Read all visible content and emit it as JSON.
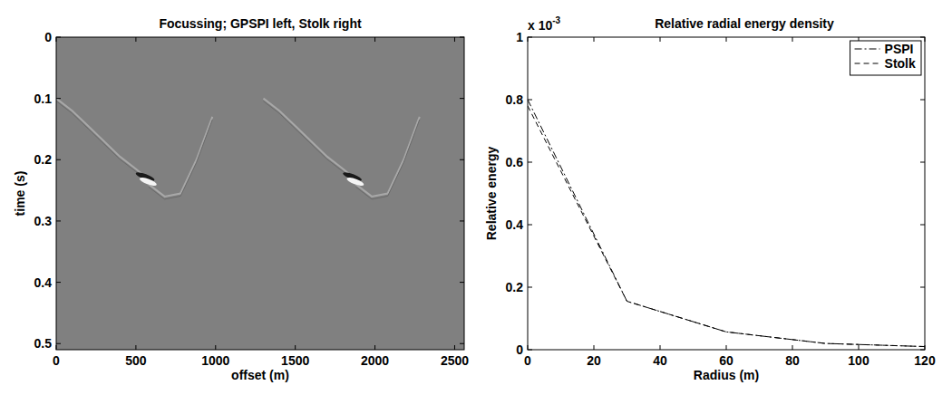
{
  "chart_data": [
    {
      "type": "image",
      "title": "Focussing; GPSPI left, Stolk right",
      "x_label": "offset (m)",
      "y_label": "time (s)",
      "color": "#808080",
      "xlim": [
        0,
        2560
      ],
      "ylim": [
        0,
        0.51
      ],
      "xticks": [
        0,
        500,
        1000,
        1500,
        2000,
        2500
      ],
      "yticks": [
        0,
        0.1,
        0.2,
        0.3,
        0.4,
        0.5
      ],
      "events": [
        {
          "x": [
            0,
            100,
            200,
            300,
            400,
            500,
            560
          ],
          "y": [
            0.1,
            0.12,
            0.145,
            0.17,
            0.195,
            0.215,
            0.228
          ]
        },
        {
          "x": [
            580,
            680,
            780,
            880,
            980
          ],
          "y": [
            0.24,
            0.26,
            0.255,
            0.2,
            0.13
          ]
        },
        {
          "x": [
            1300,
            1400,
            1500,
            1600,
            1700,
            1800,
            1860
          ],
          "y": [
            0.1,
            0.12,
            0.145,
            0.17,
            0.195,
            0.215,
            0.228
          ]
        },
        {
          "x": [
            1880,
            1980,
            2080,
            2180,
            2280
          ],
          "y": [
            0.24,
            0.26,
            0.255,
            0.2,
            0.13
          ]
        }
      ],
      "foci": {
        "x": [
          570,
          1870
        ],
        "y": [
          0.232,
          0.232
        ]
      }
    },
    {
      "type": "line",
      "title": "Relative radial energy density",
      "x_label": "Radius (m)",
      "y_label": "Relative energy",
      "annotation": "x 10",
      "annotation_exponent": "-3",
      "xlim": [
        0,
        120
      ],
      "ylim": [
        0,
        1
      ],
      "xticks": [
        0,
        20,
        40,
        60,
        80,
        100,
        120
      ],
      "yticks": [
        0,
        0.2,
        0.4,
        0.6,
        0.8,
        1
      ],
      "legend": "top-right",
      "x": [
        0,
        30,
        60,
        90,
        120
      ],
      "series": [
        {
          "name": "PSPI",
          "color": "#000000",
          "line_style": "dashdot",
          "values": [
            0.8,
            0.155,
            0.057,
            0.02,
            0.01
          ]
        },
        {
          "name": "Stolk",
          "color": "#000000",
          "line_style": "dashed",
          "values": [
            0.78,
            0.155,
            0.057,
            0.02,
            0.01
          ]
        }
      ]
    }
  ]
}
